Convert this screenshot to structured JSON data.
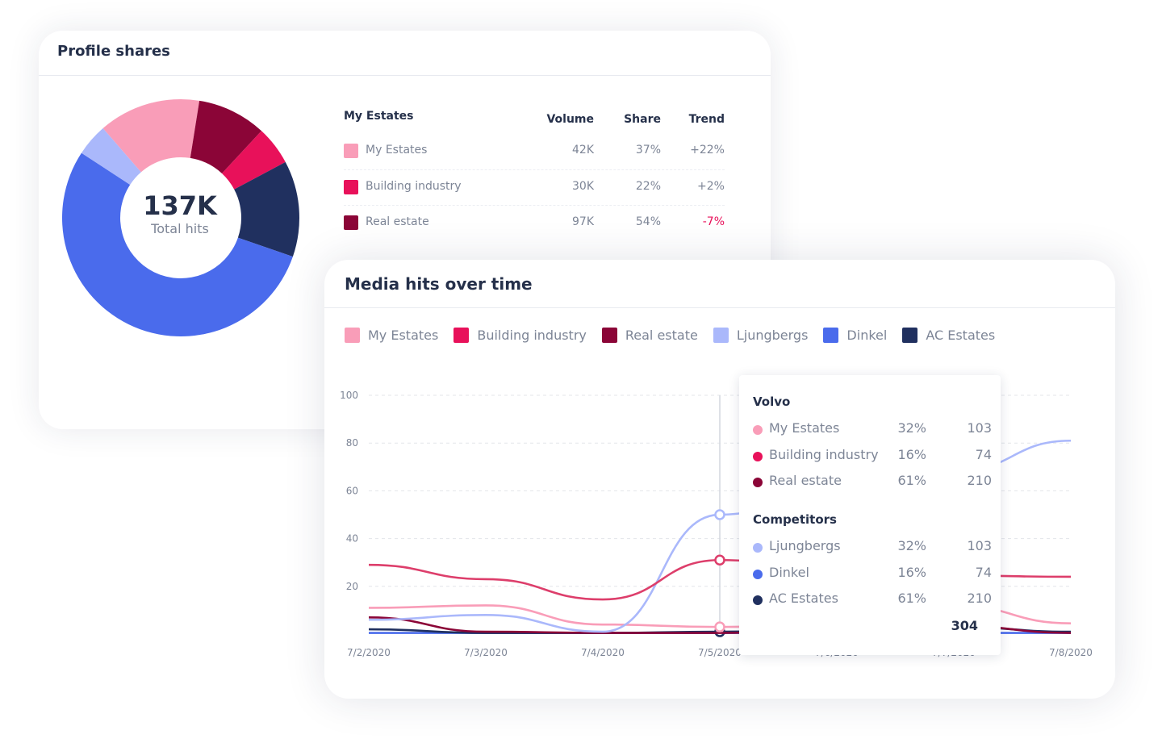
{
  "profile_shares": {
    "title": "Profile shares",
    "donut_value": "137K",
    "donut_label": "Total hits",
    "table": {
      "group_label": "My Estates",
      "columns": [
        "Volume",
        "Share",
        "Trend"
      ],
      "rows": [
        {
          "name": "My Estates",
          "volume": "42K",
          "share": "37%",
          "trend": "+22%",
          "color": "#f99db8"
        },
        {
          "name": "Building industry",
          "volume": "30K",
          "share": "22%",
          "trend": "+2%",
          "color": "#e8115a"
        },
        {
          "name": "Real estate",
          "volume": "97K",
          "share": "54%",
          "trend": "-7%",
          "color": "#8b0537"
        }
      ]
    }
  },
  "media_hits": {
    "title": "Media hits over time",
    "tooltip": {
      "group1_title": "Volvo",
      "group1_rows": [
        {
          "name": "My Estates",
          "pct": "32%",
          "value": "103",
          "color": "#f99db8"
        },
        {
          "name": "Building industry",
          "pct": "16%",
          "value": "74",
          "color": "#e8115a"
        },
        {
          "name": "Real estate",
          "pct": "61%",
          "value": "210",
          "color": "#8b0537"
        }
      ],
      "group2_title": "Competitors",
      "group2_rows": [
        {
          "name": "Ljungbergs",
          "pct": "32%",
          "value": "103",
          "color": "#aab8fb"
        },
        {
          "name": "Dinkel",
          "pct": "16%",
          "value": "74",
          "color": "#4a6bec"
        },
        {
          "name": "AC Estates",
          "pct": "61%",
          "value": "210",
          "color": "#20305f"
        }
      ],
      "total": "304"
    }
  },
  "chart_data": [
    {
      "type": "pie",
      "variant": "donut",
      "center_value": "137K",
      "center_label": "Total hits",
      "slices": [
        {
          "name": "My Estates",
          "share_pct": 13.9,
          "color": "#f99db8"
        },
        {
          "name": "Real estate",
          "share_pct": 9.4,
          "color": "#8b0537"
        },
        {
          "name": "Building industry",
          "share_pct": 5.3,
          "color": "#e8115a"
        },
        {
          "name": "AC Estates",
          "share_pct": 13.1,
          "color": "#20305f"
        },
        {
          "name": "Dinkel",
          "share_pct": 53.9,
          "color": "#4a6bec"
        },
        {
          "name": "Ljungbergs",
          "share_pct": 4.4,
          "color": "#aab8fb"
        }
      ]
    },
    {
      "type": "line",
      "title": "Media hits over time",
      "x": [
        "7/2/2020",
        "7/3/2020",
        "7/4/2020",
        "7/5/2020",
        "7/6/2020",
        "7/7/2020",
        "7/8/2020"
      ],
      "ylim": [
        0,
        100
      ],
      "yticks": [
        20,
        40,
        60,
        80,
        100
      ],
      "grid": true,
      "legend_position": "top",
      "highlight_x": "7/5/2020",
      "series": [
        {
          "name": "My Estates",
          "color": "#f99db8",
          "values": [
            11,
            12,
            4,
            3,
            5,
            12,
            4.5
          ]
        },
        {
          "name": "Building industry",
          "color": "#dd3e6b",
          "values": [
            29,
            23,
            14.5,
            31,
            27,
            24.5,
            24
          ]
        },
        {
          "name": "Real estate",
          "color": "#8b0537",
          "values": [
            7,
            1,
            0.5,
            0.5,
            2,
            3.5,
            0.5
          ]
        },
        {
          "name": "Ljungbergs",
          "color": "#aab8fb",
          "values": [
            6,
            8,
            1,
            50,
            62,
            68,
            81
          ]
        },
        {
          "name": "Dinkel",
          "color": "#4a6bec",
          "values": [
            0.5,
            0.5,
            0.5,
            0.5,
            0.5,
            0.5,
            0.5
          ]
        },
        {
          "name": "AC Estates",
          "color": "#20305f",
          "values": [
            2,
            0.5,
            0.5,
            1,
            2,
            3,
            1
          ]
        }
      ]
    }
  ]
}
